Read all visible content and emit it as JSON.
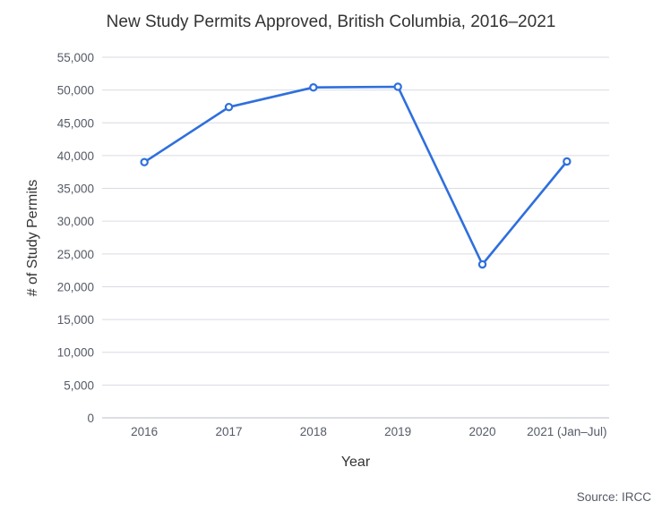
{
  "chart_data": {
    "type": "line",
    "title": "New Study Permits Approved, British Columbia, 2016–2021",
    "xlabel": "Year",
    "ylabel": "# of Study Permits",
    "categories": [
      "2016",
      "2017",
      "2018",
      "2019",
      "2020",
      "2021 (Jan–Jul)"
    ],
    "values": [
      39000,
      47400,
      50400,
      50500,
      23400,
      39100
    ],
    "ylim": [
      0,
      55000
    ],
    "yticks": [
      "0",
      "5,000",
      "10,000",
      "15,000",
      "20,000",
      "25,000",
      "30,000",
      "35,000",
      "40,000",
      "45,000",
      "50,000",
      "55,000"
    ],
    "grid": true,
    "legend": "none",
    "line_color": "#2f6fdd",
    "grid_color": "#d9dbe3"
  },
  "source": "Source: IRCC"
}
